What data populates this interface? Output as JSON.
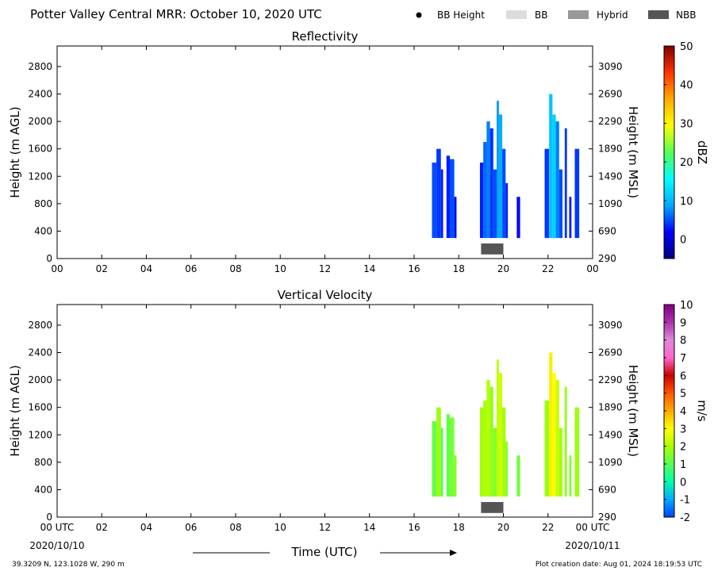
{
  "header": {
    "title": "Potter Valley Central MRR:  October 10, 2020 UTC",
    "legend": [
      {
        "label": "BB Height",
        "symbol": "dot",
        "color": "#000000"
      },
      {
        "label": "BB",
        "symbol": "box",
        "color": "#dcdcdc"
      },
      {
        "label": "Hybrid",
        "symbol": "box",
        "color": "#999999"
      },
      {
        "label": "NBB",
        "symbol": "box",
        "color": "#555555"
      }
    ]
  },
  "footer": {
    "location": "39.3209 N, 123.1028 W, 290 m",
    "creation": "Plot creation date: Aug 01, 2024 18:19:53 UTC",
    "xlabel": "Time (UTC)",
    "start_date": "2020/10/10",
    "end_date": "2020/10/11"
  },
  "chart_data": [
    {
      "type": "heatmap",
      "title": "Reflectivity",
      "ylabel": "Height (m AGL)",
      "y2label": "Height (m MSL)",
      "xticks": [
        "00",
        "02",
        "04",
        "06",
        "08",
        "10",
        "12",
        "14",
        "16",
        "18",
        "20",
        "22",
        "00"
      ],
      "xlim": [
        0,
        24
      ],
      "ylim": [
        0,
        3100
      ],
      "yticks": [
        0,
        400,
        800,
        1200,
        1600,
        2000,
        2400,
        2800
      ],
      "y2ticks": [
        290,
        690,
        1090,
        1490,
        1890,
        2290,
        2690,
        3090
      ],
      "colorbar": {
        "label": "dBZ",
        "min": -5,
        "max": 50,
        "ticks": [
          0,
          10,
          20,
          30,
          40,
          50
        ],
        "colors": [
          "#00007f",
          "#0000ff",
          "#00aaff",
          "#00ffff",
          "#55ff55",
          "#ffff00",
          "#ffaa00",
          "#ff3300",
          "#7f0000"
        ]
      },
      "bright_band": [
        {
          "type": "NBB",
          "start": 19.0,
          "end": 20.0,
          "bottom": 60,
          "top": 220
        }
      ],
      "cells": [
        {
          "start": 16.8,
          "end": 17.0,
          "top": 1400,
          "value": 5
        },
        {
          "start": 17.0,
          "end": 17.2,
          "top": 1600,
          "value": 4
        },
        {
          "start": 17.2,
          "end": 17.3,
          "top": 1300,
          "value": 3
        },
        {
          "start": 17.45,
          "end": 17.6,
          "top": 1500,
          "value": 3
        },
        {
          "start": 17.6,
          "end": 17.8,
          "top": 1450,
          "value": 5
        },
        {
          "start": 17.8,
          "end": 17.9,
          "top": 900,
          "value": 2
        },
        {
          "start": 18.95,
          "end": 19.1,
          "top": 1400,
          "value": 3
        },
        {
          "start": 19.1,
          "end": 19.25,
          "top": 1700,
          "value": 6
        },
        {
          "start": 19.25,
          "end": 19.4,
          "top": 2000,
          "value": 7
        },
        {
          "start": 19.4,
          "end": 19.55,
          "top": 1900,
          "value": 4
        },
        {
          "start": 19.55,
          "end": 19.7,
          "top": 1300,
          "value": 5
        },
        {
          "start": 19.7,
          "end": 19.8,
          "top": 2300,
          "value": 8
        },
        {
          "start": 19.8,
          "end": 19.95,
          "top": 2100,
          "value": 9
        },
        {
          "start": 19.95,
          "end": 20.1,
          "top": 1600,
          "value": 5
        },
        {
          "start": 20.1,
          "end": 20.2,
          "top": 1100,
          "value": 3
        },
        {
          "start": 20.6,
          "end": 20.75,
          "top": 900,
          "value": 2
        },
        {
          "start": 21.85,
          "end": 22.05,
          "top": 1600,
          "value": 4
        },
        {
          "start": 22.05,
          "end": 22.2,
          "top": 2400,
          "value": 11
        },
        {
          "start": 22.2,
          "end": 22.35,
          "top": 2100,
          "value": 12
        },
        {
          "start": 22.35,
          "end": 22.5,
          "top": 2000,
          "value": 7
        },
        {
          "start": 22.5,
          "end": 22.65,
          "top": 1300,
          "value": 5
        },
        {
          "start": 22.75,
          "end": 22.85,
          "top": 1900,
          "value": 4
        },
        {
          "start": 22.95,
          "end": 23.05,
          "top": 900,
          "value": 3
        },
        {
          "start": 23.2,
          "end": 23.4,
          "top": 1600,
          "value": 4
        }
      ]
    },
    {
      "type": "heatmap",
      "title": "Vertical Velocity",
      "ylabel": "Height (m AGL)",
      "y2label": "Height (m MSL)",
      "xticks": [
        "00 UTC",
        "02",
        "04",
        "06",
        "08",
        "10",
        "12",
        "14",
        "16",
        "18",
        "20",
        "22",
        "00 UTC"
      ],
      "xlim": [
        0,
        24
      ],
      "ylim": [
        0,
        3100
      ],
      "yticks": [
        0,
        400,
        800,
        1200,
        1600,
        2000,
        2400,
        2800
      ],
      "y2ticks": [
        290,
        690,
        1090,
        1490,
        1890,
        2290,
        2690,
        3090
      ],
      "colorbar": {
        "label": "m/s",
        "min": -2,
        "max": 10,
        "ticks": [
          -2,
          -1,
          0,
          1,
          2,
          3,
          4,
          5,
          6,
          7,
          8,
          9,
          10
        ],
        "colors": [
          "#0044ff",
          "#00aaff",
          "#00ffaa",
          "#55ff55",
          "#aaff00",
          "#ffff00",
          "#ffaa00",
          "#ff5500",
          "#cc0000",
          "#ff66cc",
          "#dd88dd",
          "#aa33aa",
          "#800080"
        ]
      },
      "bright_band": [
        {
          "type": "NBB",
          "start": 19.0,
          "end": 20.0,
          "bottom": 60,
          "top": 220
        }
      ],
      "cells": [
        {
          "start": 16.8,
          "end": 17.0,
          "top": 1400,
          "value": 1.2
        },
        {
          "start": 17.0,
          "end": 17.2,
          "top": 1600,
          "value": 1.8
        },
        {
          "start": 17.2,
          "end": 17.3,
          "top": 1300,
          "value": 1.0
        },
        {
          "start": 17.45,
          "end": 17.6,
          "top": 1500,
          "value": 1.1
        },
        {
          "start": 17.6,
          "end": 17.8,
          "top": 1450,
          "value": 1.4
        },
        {
          "start": 17.8,
          "end": 17.9,
          "top": 900,
          "value": 1.6
        },
        {
          "start": 18.95,
          "end": 19.1,
          "top": 1600,
          "value": 1.9
        },
        {
          "start": 19.1,
          "end": 19.25,
          "top": 1700,
          "value": 2.0
        },
        {
          "start": 19.25,
          "end": 19.4,
          "top": 2000,
          "value": 2.1
        },
        {
          "start": 19.4,
          "end": 19.55,
          "top": 1900,
          "value": 1.7
        },
        {
          "start": 19.55,
          "end": 19.7,
          "top": 1300,
          "value": 1.5
        },
        {
          "start": 19.7,
          "end": 19.8,
          "top": 2300,
          "value": 2.2
        },
        {
          "start": 19.8,
          "end": 19.95,
          "top": 2100,
          "value": 2.4
        },
        {
          "start": 19.95,
          "end": 20.1,
          "top": 1600,
          "value": 1.9
        },
        {
          "start": 20.1,
          "end": 20.2,
          "top": 1100,
          "value": 1.6
        },
        {
          "start": 20.6,
          "end": 20.75,
          "top": 900,
          "value": 1.3
        },
        {
          "start": 21.85,
          "end": 22.05,
          "top": 1700,
          "value": 1.8
        },
        {
          "start": 22.05,
          "end": 22.2,
          "top": 2400,
          "value": 3.2
        },
        {
          "start": 22.2,
          "end": 22.35,
          "top": 2100,
          "value": 3.0
        },
        {
          "start": 22.35,
          "end": 22.5,
          "top": 2000,
          "value": 2.3
        },
        {
          "start": 22.5,
          "end": 22.65,
          "top": 1300,
          "value": 1.9
        },
        {
          "start": 22.75,
          "end": 22.85,
          "top": 1900,
          "value": 1.7
        },
        {
          "start": 22.95,
          "end": 23.05,
          "top": 900,
          "value": 1.5
        },
        {
          "start": 23.2,
          "end": 23.4,
          "top": 1600,
          "value": 1.8
        }
      ]
    }
  ]
}
